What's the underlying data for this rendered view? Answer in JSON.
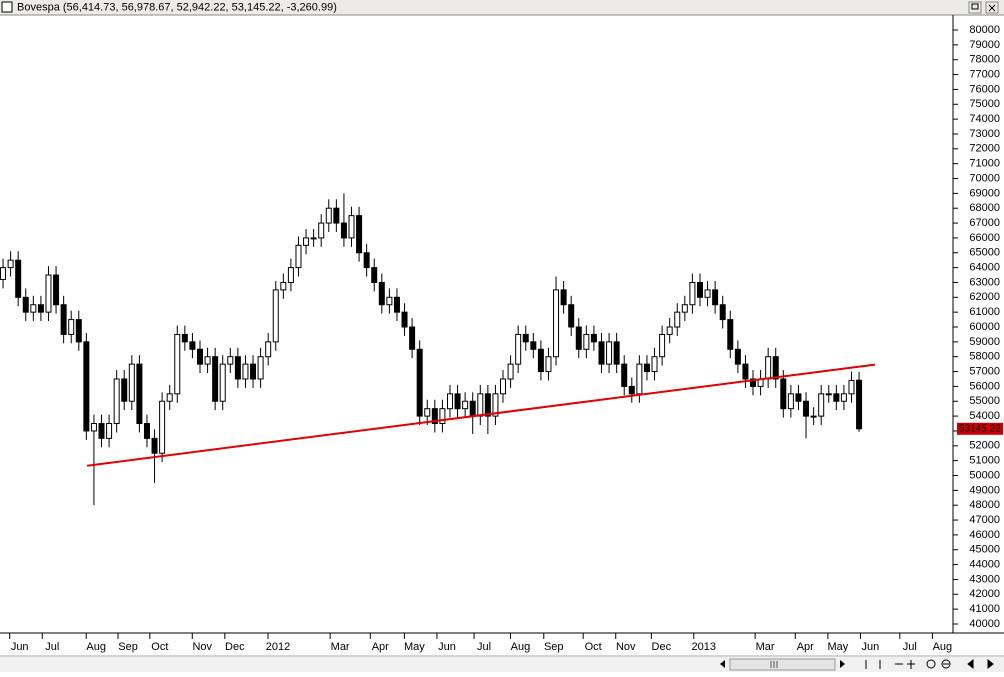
{
  "chart_data": {
    "type": "candlestick",
    "title": "Bovespa (56,414.73, 56,978.67, 52,942.22, 53,145.22, -3,260.99)",
    "categories": [
      null,
      null,
      null,
      null,
      null,
      null,
      null,
      null,
      null,
      null,
      null,
      null,
      null,
      null,
      null,
      null,
      null,
      null,
      null,
      null,
      null,
      null,
      null,
      null,
      null,
      null,
      null,
      null,
      null,
      null,
      null,
      null,
      null,
      null,
      null,
      null,
      null,
      null,
      null,
      null,
      null,
      null,
      null,
      null,
      null,
      null,
      null,
      null,
      null,
      null,
      null,
      null,
      null,
      null,
      null,
      null,
      null,
      null,
      null,
      null,
      null,
      null,
      null,
      null,
      null,
      null,
      null,
      null,
      null,
      null,
      null,
      null,
      null,
      null,
      null,
      null,
      null,
      null,
      null,
      null,
      null,
      null,
      null,
      null,
      null,
      null,
      null,
      null,
      null,
      null,
      null,
      null,
      null,
      null,
      null,
      null,
      null,
      null,
      null,
      null,
      null,
      null,
      null,
      null,
      null,
      null,
      null,
      null,
      null,
      null,
      null,
      null,
      null,
      null
    ],
    "open": [
      63200,
      64000,
      64500,
      62000,
      61000,
      61500,
      61000,
      63500,
      61500,
      59500,
      60500,
      59000,
      53000,
      53500,
      52500,
      53500,
      56500,
      55000,
      57500,
      53500,
      52500,
      51500,
      55000,
      55500,
      59500,
      59000,
      58500,
      57500,
      58000,
      55000,
      57500,
      58000,
      56500,
      57500,
      56500,
      58000,
      59000,
      62500,
      63000,
      64000,
      65500,
      66000,
      66000,
      67000,
      68000,
      67000,
      66000,
      67500,
      65000,
      64000,
      63000,
      61500,
      62000,
      61000,
      60000,
      58500,
      54000,
      54500,
      53500,
      54500,
      55500,
      54500,
      55000,
      54000,
      55500,
      54000,
      55500,
      56500,
      57500,
      59500,
      59000,
      58500,
      57000,
      58000,
      62500,
      61500,
      60000,
      58500,
      59500,
      59000,
      57500,
      59000,
      57500,
      56000,
      55500,
      57500,
      57000,
      58000,
      59500,
      60000,
      61000,
      61500,
      63000,
      62000,
      62500,
      61500,
      60500,
      58500,
      57500,
      56500,
      56000,
      56500,
      58000,
      56500,
      54500,
      55500,
      55000,
      54000,
      54000,
      55500,
      55500,
      55000,
      55500,
      56414.73
    ],
    "high": [
      64600,
      65100,
      65100,
      62600,
      62100,
      62100,
      64100,
      64100,
      62100,
      61100,
      61100,
      59600,
      54100,
      54100,
      54100,
      57100,
      57100,
      58100,
      58100,
      54100,
      53100,
      55600,
      56100,
      60100,
      60100,
      59600,
      59100,
      58600,
      58600,
      58100,
      58600,
      58600,
      58100,
      58100,
      58600,
      59600,
      63100,
      63600,
      64600,
      66100,
      66600,
      66600,
      67600,
      68600,
      68600,
      69000,
      68100,
      68100,
      65600,
      64600,
      63600,
      62600,
      62600,
      61600,
      60600,
      59100,
      55100,
      55100,
      55100,
      56100,
      56100,
      55600,
      55600,
      56100,
      56100,
      56100,
      57100,
      58100,
      60100,
      60100,
      59600,
      59100,
      58600,
      63400,
      63100,
      62100,
      60600,
      60100,
      60100,
      59600,
      59600,
      59600,
      58100,
      56600,
      58100,
      58100,
      58600,
      60100,
      60600,
      61600,
      62100,
      63600,
      63600,
      63100,
      63100,
      62100,
      61100,
      59100,
      58100,
      57100,
      57100,
      58600,
      58600,
      57100,
      56100,
      56100,
      55600,
      54600,
      56100,
      56100,
      56100,
      56100,
      57000,
      56978.67
    ],
    "low": [
      62600,
      63400,
      61400,
      60400,
      60400,
      60400,
      60400,
      60900,
      58900,
      58900,
      58400,
      52400,
      48000,
      51900,
      51900,
      52900,
      54400,
      54400,
      52900,
      51900,
      49500,
      50900,
      54400,
      54900,
      58400,
      57900,
      56900,
      56900,
      54400,
      54400,
      56900,
      55900,
      55900,
      55900,
      55900,
      57400,
      58400,
      61900,
      62400,
      63400,
      64900,
      65400,
      65400,
      66400,
      66400,
      65400,
      65400,
      64400,
      63400,
      62400,
      60900,
      60900,
      60400,
      59400,
      57900,
      53400,
      53400,
      52900,
      52900,
      53900,
      53900,
      53900,
      52800,
      53400,
      52800,
      53400,
      54900,
      55900,
      56900,
      58400,
      57900,
      56400,
      56400,
      57400,
      60900,
      59400,
      57900,
      57900,
      58400,
      56900,
      56900,
      56900,
      55400,
      54900,
      54900,
      56400,
      56400,
      57400,
      58900,
      59400,
      60400,
      60900,
      61400,
      61400,
      60900,
      59900,
      57900,
      56900,
      55900,
      55400,
      55400,
      55900,
      55900,
      53900,
      53900,
      54400,
      52500,
      53400,
      53400,
      54900,
      54400,
      54400,
      54900,
      52942.22
    ],
    "close": [
      64000,
      64500,
      62000,
      61000,
      61500,
      61000,
      63500,
      61500,
      59500,
      60500,
      59000,
      53000,
      53500,
      52500,
      53500,
      56500,
      55000,
      57500,
      53500,
      52500,
      51500,
      55000,
      55500,
      59500,
      59000,
      58500,
      57500,
      58000,
      55000,
      57500,
      58000,
      56500,
      57500,
      56500,
      58000,
      59000,
      62500,
      63000,
      64000,
      65500,
      66000,
      66000,
      67000,
      68000,
      67000,
      66000,
      67500,
      65000,
      64000,
      63000,
      61500,
      62000,
      61000,
      60000,
      58500,
      54000,
      54500,
      53500,
      54500,
      55500,
      54500,
      55000,
      54000,
      55500,
      54000,
      55500,
      56500,
      57500,
      59500,
      59000,
      58500,
      57000,
      58000,
      62500,
      61500,
      60000,
      58500,
      59500,
      59000,
      57500,
      59000,
      57500,
      56000,
      55500,
      57500,
      57000,
      58000,
      59500,
      60000,
      61000,
      61500,
      63000,
      62000,
      62500,
      61500,
      60500,
      58500,
      57500,
      56500,
      56000,
      56500,
      58000,
      56500,
      54500,
      55500,
      55000,
      54000,
      54000,
      55500,
      55500,
      55000,
      55500,
      56400,
      53145.22
    ],
    "up_color": "#ffffff",
    "down_color": "#000000",
    "last_label_color": "#cc0000",
    "trendline": {
      "x": [
        11.1,
        115.1
      ],
      "values": [
        50658,
        57470
      ],
      "color": "#e00000"
    },
    "xlim": [
      -0.4,
      125.4
    ],
    "xticks": [
      {
        "value": 2.2,
        "label": "Jun"
      },
      {
        "value": 6.5,
        "label": "Jul"
      },
      {
        "value": 12.3,
        "label": "Aug"
      },
      {
        "value": 16.5,
        "label": "Sep"
      },
      {
        "value": 20.7,
        "label": "Oct"
      },
      {
        "value": 26.3,
        "label": "Nov"
      },
      {
        "value": 30.6,
        "label": "Dec"
      },
      {
        "value": 36.3,
        "label": "2012"
      },
      {
        "value": 44.5,
        "label": "Mar"
      },
      {
        "value": 49.8,
        "label": "Apr"
      },
      {
        "value": 54.3,
        "label": "May"
      },
      {
        "value": 58.6,
        "label": "Jun"
      },
      {
        "value": 63.5,
        "label": "Jul"
      },
      {
        "value": 68.3,
        "label": "Aug"
      },
      {
        "value": 72.7,
        "label": "Sep"
      },
      {
        "value": 77.9,
        "label": "Oct"
      },
      {
        "value": 82.2,
        "label": "Nov"
      },
      {
        "value": 86.9,
        "label": "Dec"
      },
      {
        "value": 92.5,
        "label": "2013"
      },
      {
        "value": 100.6,
        "label": "Mar"
      },
      {
        "value": 105.9,
        "label": "Apr"
      },
      {
        "value": 110.2,
        "label": "May"
      },
      {
        "value": 114.5,
        "label": "Jun"
      },
      {
        "value": 119.7,
        "label": "Jul"
      },
      {
        "value": 124.0,
        "label": "Aug"
      }
    ],
    "ylim": [
      39393,
      81012
    ],
    "yticks": [
      40000,
      41000,
      42000,
      43000,
      44000,
      45000,
      46000,
      47000,
      48000,
      49000,
      50000,
      51000,
      52000,
      53000,
      54000,
      55000,
      56000,
      57000,
      58000,
      59000,
      60000,
      61000,
      62000,
      63000,
      64000,
      65000,
      66000,
      67000,
      68000,
      69000,
      70000,
      71000,
      72000,
      73000,
      74000,
      75000,
      76000,
      77000,
      78000,
      79000,
      80000
    ]
  }
}
